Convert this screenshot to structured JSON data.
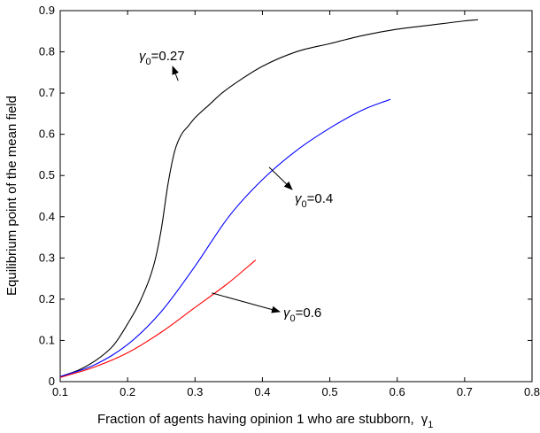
{
  "chart_data": {
    "type": "line",
    "title": "",
    "xlabel": "Fraction of agents having opinion  1 who are stubborn,",
    "xlabel_symbol": "γ",
    "xlabel_symbol_sub": "1",
    "ylabel": "Equilibrium point of the mean field",
    "xlim": [
      0.1,
      0.8
    ],
    "ylim": [
      0,
      0.9
    ],
    "x_ticks": [
      "0.1",
      "0.2",
      "0.3",
      "0.4",
      "0.5",
      "0.6",
      "0.7",
      "0.8"
    ],
    "y_ticks": [
      "0",
      "0.1",
      "0.2",
      "0.3",
      "0.4",
      "0.5",
      "0.6",
      "0.7",
      "0.8",
      "0.9"
    ],
    "grid": false,
    "legend": "none",
    "series": [
      {
        "color": "#000000",
        "x": [
          0.1,
          0.13,
          0.16,
          0.18,
          0.2,
          0.22,
          0.24,
          0.25,
          0.26,
          0.27,
          0.28,
          0.29,
          0.3,
          0.32,
          0.34,
          0.37,
          0.4,
          0.45,
          0.5,
          0.55,
          0.6,
          0.65,
          0.7,
          0.72
        ],
        "y": [
          0.012,
          0.03,
          0.06,
          0.09,
          0.14,
          0.2,
          0.29,
          0.37,
          0.48,
          0.56,
          0.6,
          0.62,
          0.64,
          0.67,
          0.7,
          0.735,
          0.765,
          0.8,
          0.82,
          0.84,
          0.855,
          0.865,
          0.875,
          0.878
        ]
      },
      {
        "color": "#0000ff",
        "x": [
          0.1,
          0.15,
          0.2,
          0.25,
          0.3,
          0.35,
          0.4,
          0.45,
          0.5,
          0.55,
          0.59
        ],
        "y": [
          0.012,
          0.04,
          0.09,
          0.17,
          0.28,
          0.4,
          0.49,
          0.56,
          0.615,
          0.66,
          0.685
        ]
      },
      {
        "color": "#ff0000",
        "x": [
          0.1,
          0.15,
          0.2,
          0.25,
          0.3,
          0.35,
          0.39
        ],
        "y": [
          0.01,
          0.035,
          0.07,
          0.12,
          0.18,
          0.24,
          0.295
        ]
      }
    ],
    "annotations": [
      {
        "symbol": "γ",
        "sub": "0",
        "text": "=0.27",
        "arrow_to": [
          0.275,
          0.73
        ]
      },
      {
        "symbol": "γ",
        "sub": "0",
        "text": "=0.4",
        "arrow_to": [
          0.41,
          0.52
        ]
      },
      {
        "symbol": "γ",
        "sub": "0",
        "text": "=0.6",
        "arrow_to": [
          0.325,
          0.215
        ]
      }
    ]
  }
}
